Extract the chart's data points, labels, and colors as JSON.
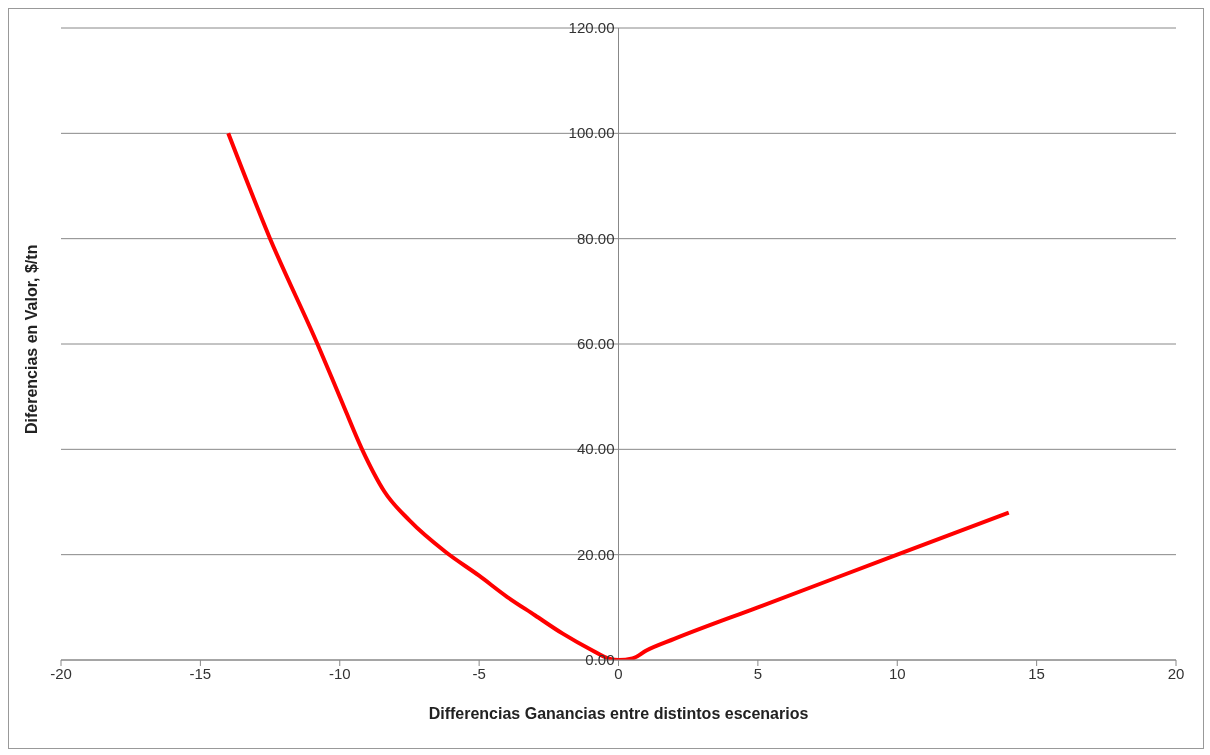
{
  "chart_data": {
    "type": "line",
    "xlabel": "Differencias Ganancias entre distintos escenarios",
    "ylabel": "Diferencias en Valor, $/tn",
    "x": [
      -14,
      -12.5,
      -10.8,
      -10,
      -9.2,
      -8.4,
      -7.5,
      -6.2,
      -5,
      -4,
      -3,
      -2,
      -1,
      -0.3,
      0,
      0.5,
      1,
      2,
      5,
      10,
      14
    ],
    "series": [
      {
        "color": "#ff0000",
        "values": [
          100,
          80,
          60,
          50,
          40,
          32,
          26.5,
          20.5,
          16,
          12,
          8.5,
          5,
          2,
          0.2,
          0,
          0.3,
          1.8,
          4,
          10,
          20,
          28
        ]
      }
    ],
    "xlim": [
      -20,
      20
    ],
    "xticks": [
      -20,
      -15,
      -10,
      -5,
      0,
      5,
      10,
      15,
      20
    ],
    "ylim": [
      0,
      120
    ],
    "yticks": [
      {
        "value": 0,
        "label": "0.00"
      },
      {
        "value": 20,
        "label": "20.00"
      },
      {
        "value": 40,
        "label": "40.00"
      },
      {
        "value": 60,
        "label": "60.00"
      },
      {
        "value": 80,
        "label": "80.00"
      },
      {
        "value": 100,
        "label": "100.00"
      },
      {
        "value": 120,
        "label": "120.00"
      }
    ],
    "grid": "y",
    "legend": false,
    "marker": "none",
    "line_style": "solid"
  }
}
